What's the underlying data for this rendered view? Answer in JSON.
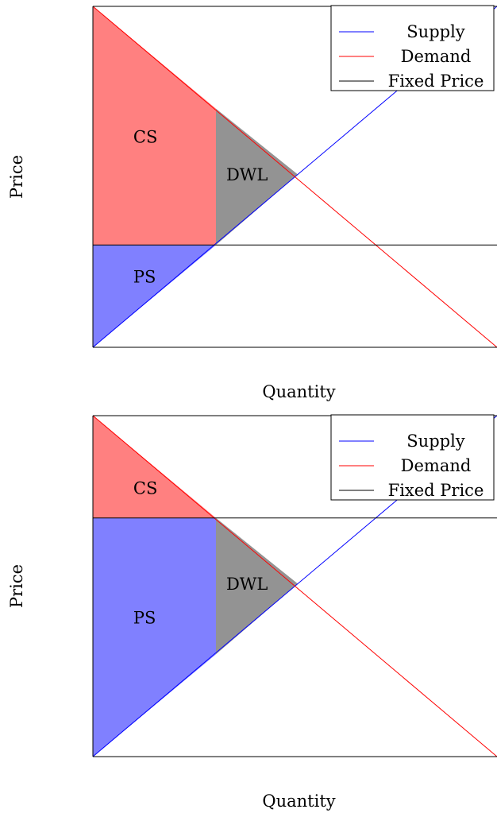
{
  "chart_data": [
    {
      "type": "line",
      "xlabel": "Quantity",
      "ylabel": "Price",
      "xlim": [
        0,
        10
      ],
      "ylim": [
        0,
        10
      ],
      "grid": false,
      "legend_position": "top-right",
      "series": [
        {
          "name": "Supply",
          "color": "#0000ff",
          "x": [
            0,
            10
          ],
          "y": [
            0,
            10
          ]
        },
        {
          "name": "Demand",
          "color": "#ff0000",
          "x": [
            0,
            10
          ],
          "y": [
            10,
            0
          ]
        },
        {
          "name": "Fixed Price",
          "color": "#000000",
          "x": [
            0,
            10
          ],
          "y": [
            3,
            3
          ]
        }
      ],
      "regions": [
        {
          "label": "CS",
          "color": "#ff8080",
          "label_at": [
            1.0,
            6.0
          ],
          "points": [
            [
              0,
              10
            ],
            [
              3.045,
              7.0
            ],
            [
              3.045,
              3
            ],
            [
              0,
              3
            ]
          ]
        },
        {
          "label": "DWL",
          "color": "#939393",
          "label_at": [
            3.3,
            4.9
          ],
          "points": [
            [
              3.045,
              7.0
            ],
            [
              5.07,
              5.07
            ],
            [
              3.045,
              3
            ]
          ]
        },
        {
          "label": "PS",
          "color": "#8080ff",
          "label_at": [
            1.0,
            1.9
          ],
          "points": [
            [
              0,
              0
            ],
            [
              3.045,
              3
            ],
            [
              0,
              3
            ]
          ]
        }
      ]
    },
    {
      "type": "line",
      "xlabel": "Quantity",
      "ylabel": "Price",
      "xlim": [
        0,
        10
      ],
      "ylim": [
        0,
        10
      ],
      "grid": false,
      "legend_position": "top-right",
      "series": [
        {
          "name": "Supply",
          "color": "#0000ff",
          "x": [
            0,
            10
          ],
          "y": [
            0,
            10
          ]
        },
        {
          "name": "Demand",
          "color": "#ff0000",
          "x": [
            0,
            10
          ],
          "y": [
            10,
            0
          ]
        },
        {
          "name": "Fixed Price",
          "color": "#000000",
          "x": [
            0,
            10
          ],
          "y": [
            7,
            7
          ]
        }
      ],
      "regions": [
        {
          "label": "CS",
          "color": "#ff8080",
          "label_at": [
            1.0,
            7.7
          ],
          "points": [
            [
              0,
              10
            ],
            [
              3.045,
              7
            ],
            [
              0,
              7
            ]
          ]
        },
        {
          "label": "DWL",
          "color": "#939393",
          "label_at": [
            3.3,
            4.9
          ],
          "points": [
            [
              3.045,
              7
            ],
            [
              5.07,
              5.07
            ],
            [
              3.045,
              3.0
            ]
          ]
        },
        {
          "label": "PS",
          "color": "#8080ff",
          "label_at": [
            1.0,
            3.9
          ],
          "points": [
            [
              0,
              0
            ],
            [
              3.045,
              3.0
            ],
            [
              3.045,
              7
            ],
            [
              0,
              7
            ]
          ]
        }
      ]
    }
  ]
}
